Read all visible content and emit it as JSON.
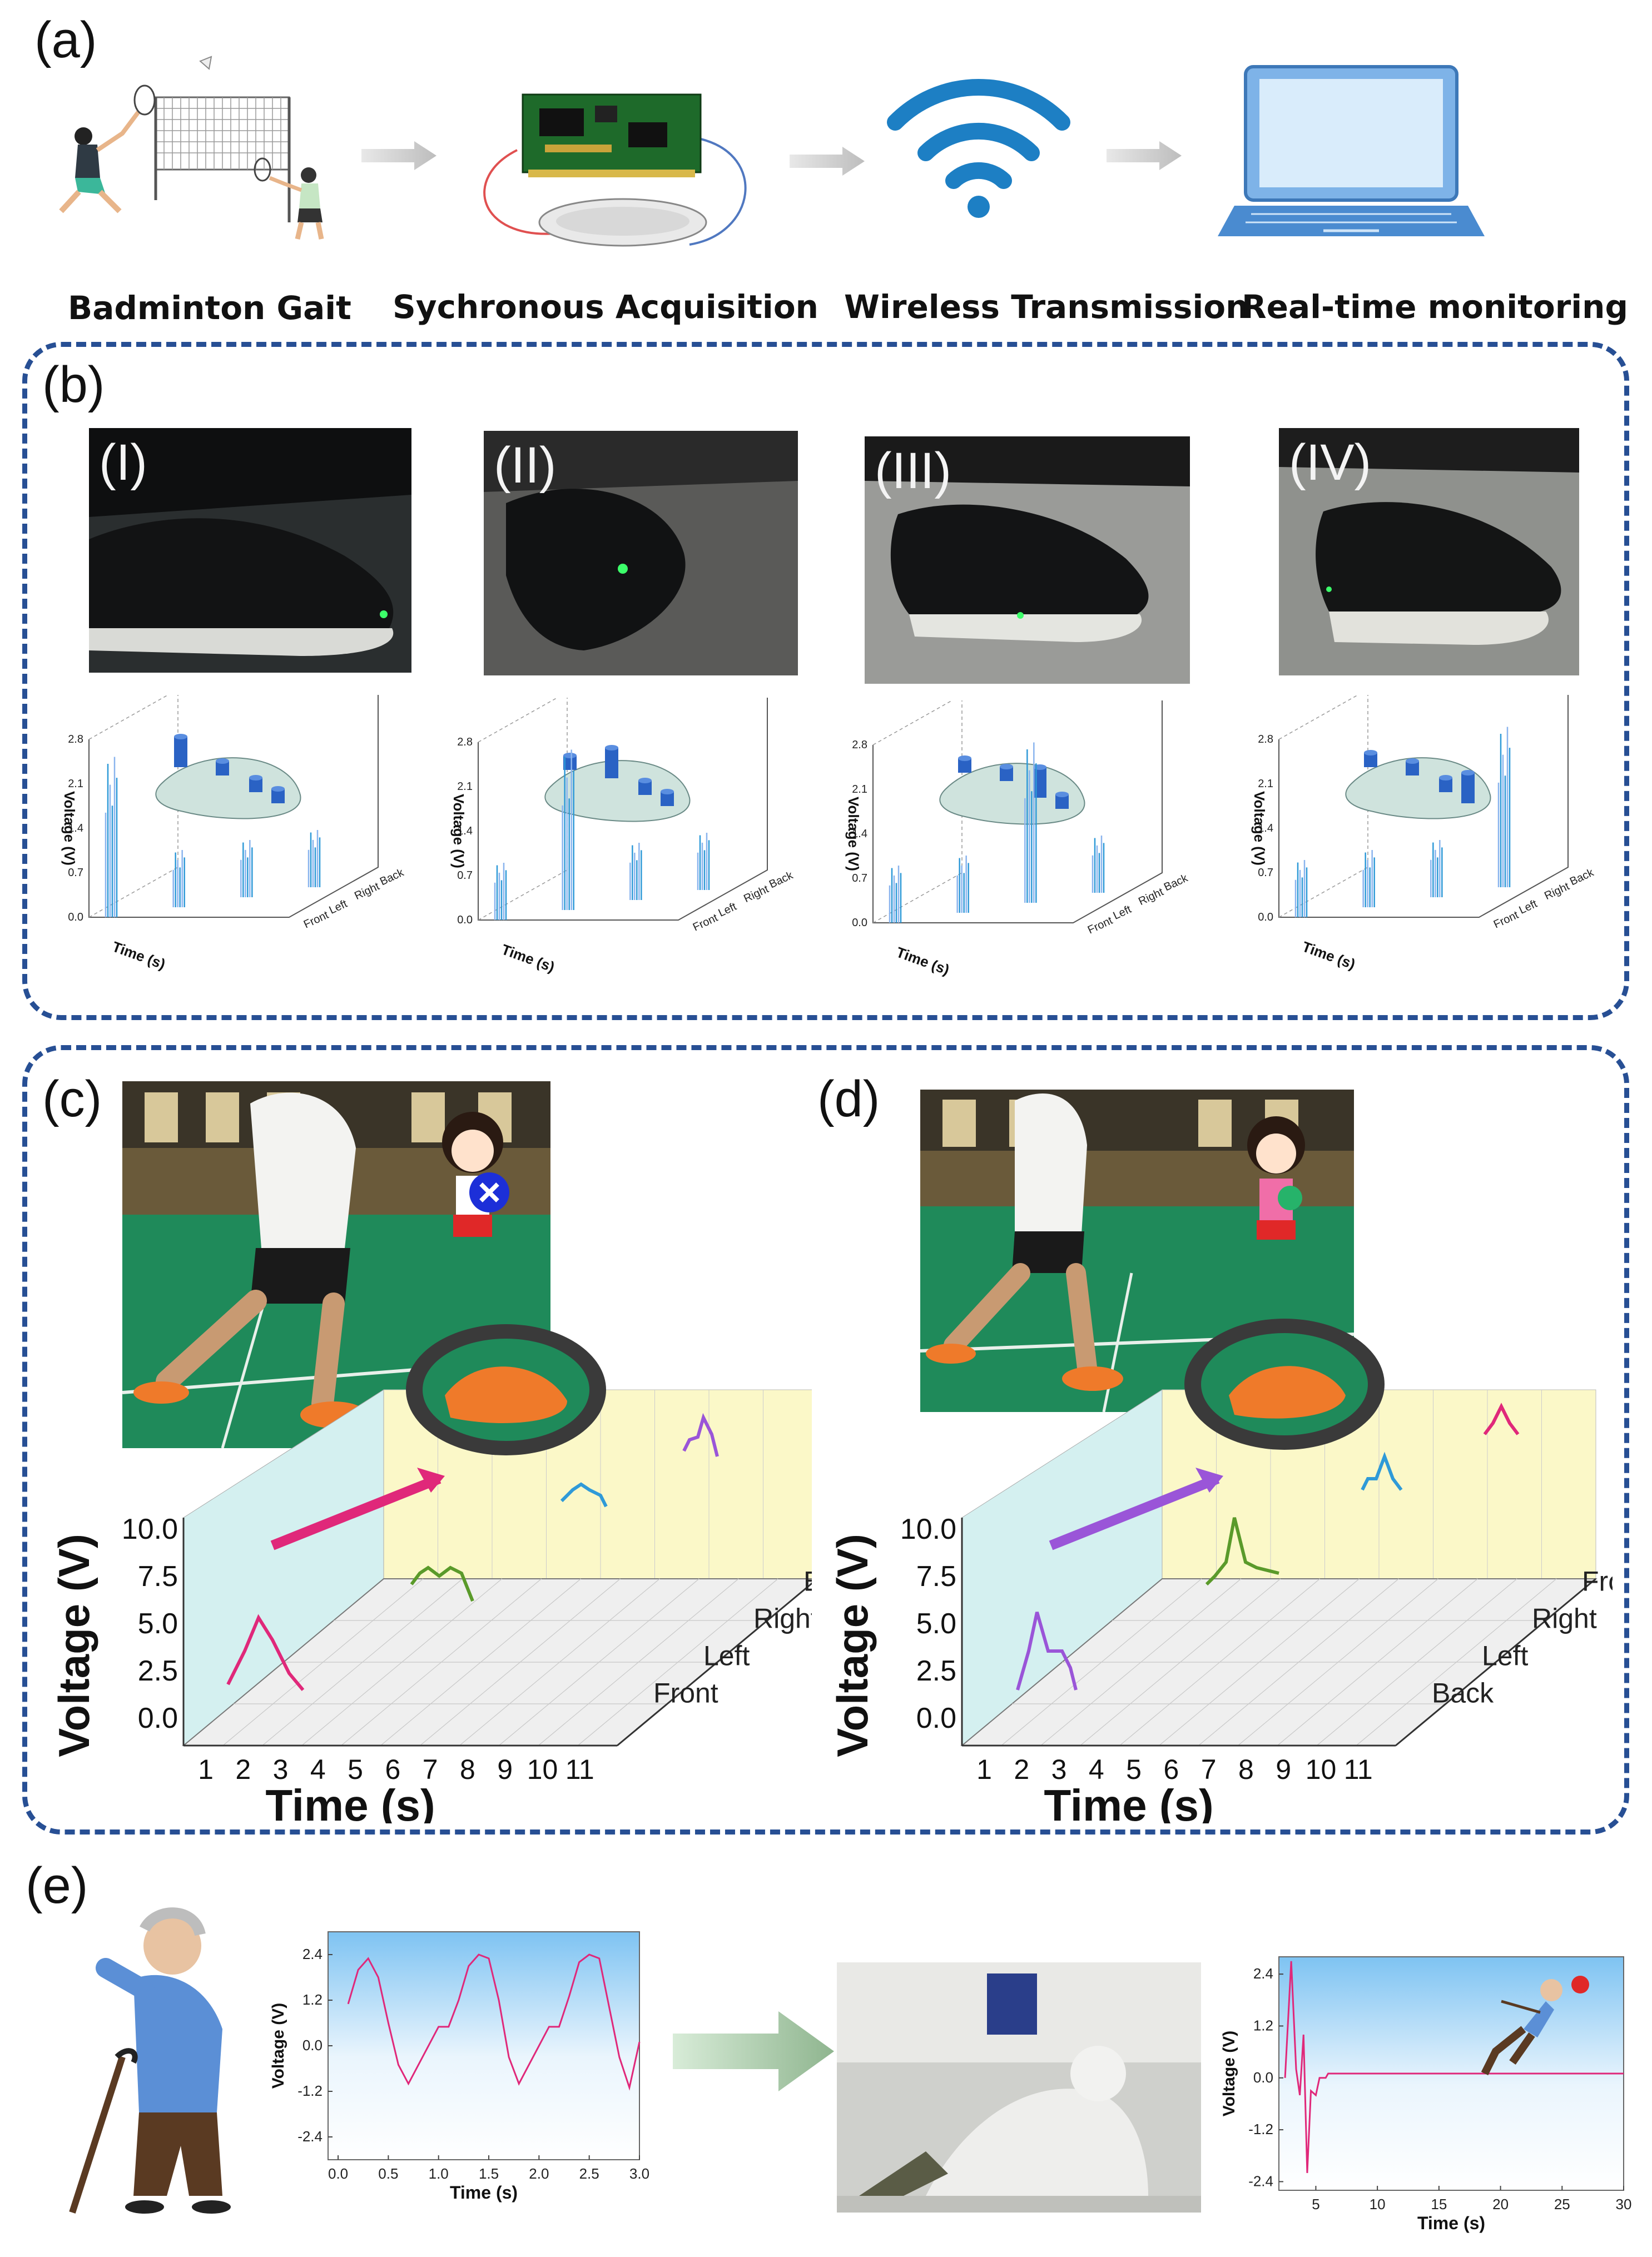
{
  "panels": {
    "a": "(a)",
    "b": "(b)",
    "c": "(c)",
    "d": "(d)",
    "e": "(e)"
  },
  "a": {
    "captions": [
      "Badminton Gait",
      "Sychronous Acquisition",
      "Wireless Transmission",
      "Real-time monitoring"
    ]
  },
  "b": {
    "subpanels": [
      "(I)",
      "(II)",
      "(III)",
      "(IV)"
    ],
    "ylabel": "Voltage (V)",
    "xlabel": "Time (s)",
    "yticks": [
      "0.0",
      "0.7",
      "1.4",
      "2.1",
      "2.8"
    ],
    "zticks": [
      "Front",
      "Left",
      "Right",
      "Back"
    ],
    "spike_position": [
      "Front",
      "Right",
      "Left",
      "Back"
    ]
  },
  "c": {
    "ylabel": "Voltage (V)",
    "xlabel": "Time (s)",
    "yticks": [
      "0.0",
      "2.5",
      "5.0",
      "7.5",
      "10.0"
    ],
    "xticks": [
      "1",
      "2",
      "3",
      "4",
      "5",
      "6",
      "7",
      "8",
      "9",
      "10",
      "11"
    ],
    "zticks": [
      "Front",
      "Left",
      "Right",
      "Back"
    ],
    "colors": [
      "#e0287a",
      "#5a9a2a",
      "#2f9ad8",
      "#9a55d8"
    ]
  },
  "d": {
    "ylabel": "Voltage (V)",
    "xlabel": "Time (s)",
    "yticks": [
      "0.0",
      "2.5",
      "5.0",
      "7.5",
      "10.0"
    ],
    "xticks": [
      "1",
      "2",
      "3",
      "4",
      "5",
      "6",
      "7",
      "8",
      "9",
      "10",
      "11"
    ],
    "zticks": [
      "Back",
      "Left",
      "Right",
      "Front"
    ],
    "colors": [
      "#9a55d8",
      "#5a9a2a",
      "#2f9ad8",
      "#e0287a"
    ]
  },
  "e": {
    "chart1": {
      "ylabel": "Voltage (V)",
      "xlabel": "Time (s)",
      "yticks": [
        "-2.4",
        "-1.2",
        "0.0",
        "1.2",
        "2.4"
      ],
      "xticks": [
        "0.0",
        "0.5",
        "1.0",
        "1.5",
        "2.0",
        "2.5",
        "3.0"
      ]
    },
    "chart2": {
      "ylabel": "Voltage (V)",
      "xlabel": "Time (s)",
      "yticks": [
        "-2.4",
        "-1.2",
        "0.0",
        "1.2",
        "2.4"
      ],
      "xticks": [
        "5",
        "10",
        "15",
        "20",
        "25",
        "30"
      ]
    }
  },
  "chart_data": [
    {
      "type": "line",
      "id": "e-walking",
      "xlabel": "Time (s)",
      "ylabel": "Voltage (V)",
      "xlim": [
        -0.1,
        3.0
      ],
      "ylim": [
        -3.0,
        3.0
      ],
      "x": [
        0.1,
        0.2,
        0.3,
        0.4,
        0.5,
        0.6,
        0.7,
        1.0,
        1.1,
        1.2,
        1.3,
        1.4,
        1.5,
        1.6,
        1.7,
        1.8,
        2.1,
        2.2,
        2.3,
        2.4,
        2.5,
        2.6,
        2.7,
        2.8,
        2.9,
        3.0
      ],
      "values": [
        1.1,
        2.0,
        2.3,
        1.8,
        0.6,
        -0.5,
        -1.0,
        0.5,
        0.5,
        1.2,
        2.1,
        2.4,
        2.3,
        1.2,
        -0.3,
        -1.0,
        0.5,
        0.5,
        1.3,
        2.2,
        2.4,
        2.3,
        1.0,
        -0.3,
        -1.1,
        0.1
      ]
    },
    {
      "type": "line",
      "id": "e-fall",
      "xlabel": "Time (s)",
      "ylabel": "Voltage (V)",
      "xlim": [
        2,
        30
      ],
      "ylim": [
        -2.6,
        2.8
      ],
      "x": [
        2.5,
        3.0,
        3.4,
        3.7,
        4.0,
        4.3,
        4.6,
        5.0,
        5.3,
        5.8,
        6.0,
        30.0
      ],
      "values": [
        0.0,
        2.7,
        0.2,
        -0.4,
        1.0,
        -2.2,
        -0.3,
        -0.4,
        0.0,
        0.0,
        0.1,
        0.1
      ]
    }
  ]
}
